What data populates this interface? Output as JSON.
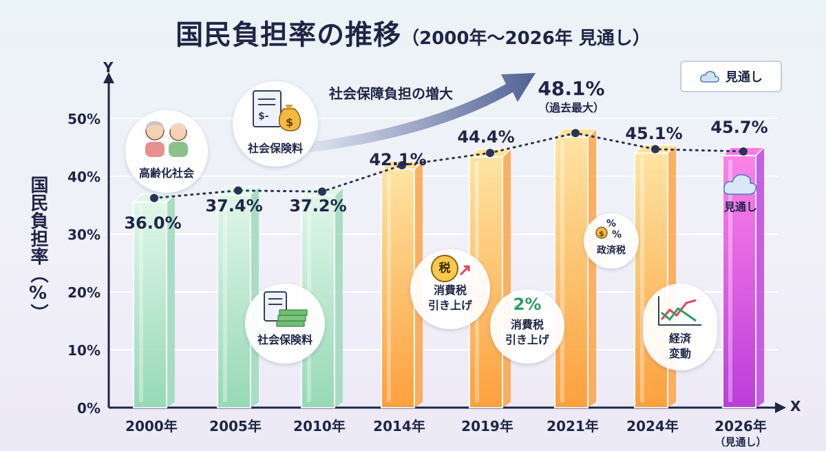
{
  "title": {
    "main": "国民負担率の推移",
    "sub": "（2000年〜2026年 見通し）"
  },
  "legend": {
    "label": "見通し",
    "icon": "cloud-icon"
  },
  "axes": {
    "y_letter": "Y",
    "x_letter": "X",
    "ylabel": "国民負担率（%）"
  },
  "trend_label": "社会保障負担の増大",
  "badges": [
    {
      "name": "elderly-badge",
      "icon": "elderly-couple-icon",
      "lines": [
        "高齢化社会"
      ]
    },
    {
      "name": "insurance-badge-top",
      "icon": "document-moneybag-icon",
      "lines": [
        "社会保険料"
      ]
    },
    {
      "name": "insurance-badge-bottom",
      "icon": "document-cash-icon",
      "lines": [
        "社会保険料"
      ]
    },
    {
      "name": "tax-hike-badge-2014",
      "icon": "tax-icon",
      "icon_text": "税",
      "lines": [
        "消費税",
        "引き上げ"
      ]
    },
    {
      "name": "tax-hike-badge-2019",
      "icon": "percent-icon",
      "icon_text": "2%",
      "lines": [
        "消費税",
        "引き上げ"
      ]
    },
    {
      "name": "policy-tax-badge",
      "icon": "coin-percent-icon",
      "lines": [
        "政済税"
      ]
    },
    {
      "name": "economy-badge",
      "icon": "stock-chart-icon",
      "lines": [
        "経済",
        "変動"
      ]
    }
  ],
  "chart_data": {
    "type": "bar",
    "categories": [
      "2000年",
      "2005年",
      "2010年",
      "2014年",
      "2019年",
      "2021年",
      "2024年",
      "2026年"
    ],
    "category_notes": [
      "",
      "",
      "",
      "",
      "",
      "",
      "",
      "（見通し）"
    ],
    "values": [
      36.0,
      37.4,
      37.2,
      42.1,
      44.4,
      48.1,
      45.1,
      45.7
    ],
    "value_labels": [
      "36.0%",
      "37.4%",
      "37.2%",
      "42.1%",
      "44.4%",
      "48.1%",
      "45.1%",
      "45.7%"
    ],
    "annotations": [
      "",
      "",
      "",
      "",
      "",
      "（過去最大）",
      "",
      ""
    ],
    "forecast_label": "見通し",
    "yticks": [
      0,
      10,
      20,
      30,
      40,
      50
    ],
    "ytick_labels": [
      "0%",
      "10%",
      "20%",
      "30%",
      "40%",
      "50%"
    ],
    "ylim": [
      0,
      55
    ],
    "xlabel": "",
    "ylabel": "国民負担率（%）",
    "grid": true,
    "colors": {
      "green": [
        "#dff7e8",
        "#8fd8b0"
      ],
      "orange": [
        "#ffe39a",
        "#ff9a2e"
      ],
      "forecast": [
        "#ff7ae6",
        "#b72fd8"
      ]
    }
  }
}
